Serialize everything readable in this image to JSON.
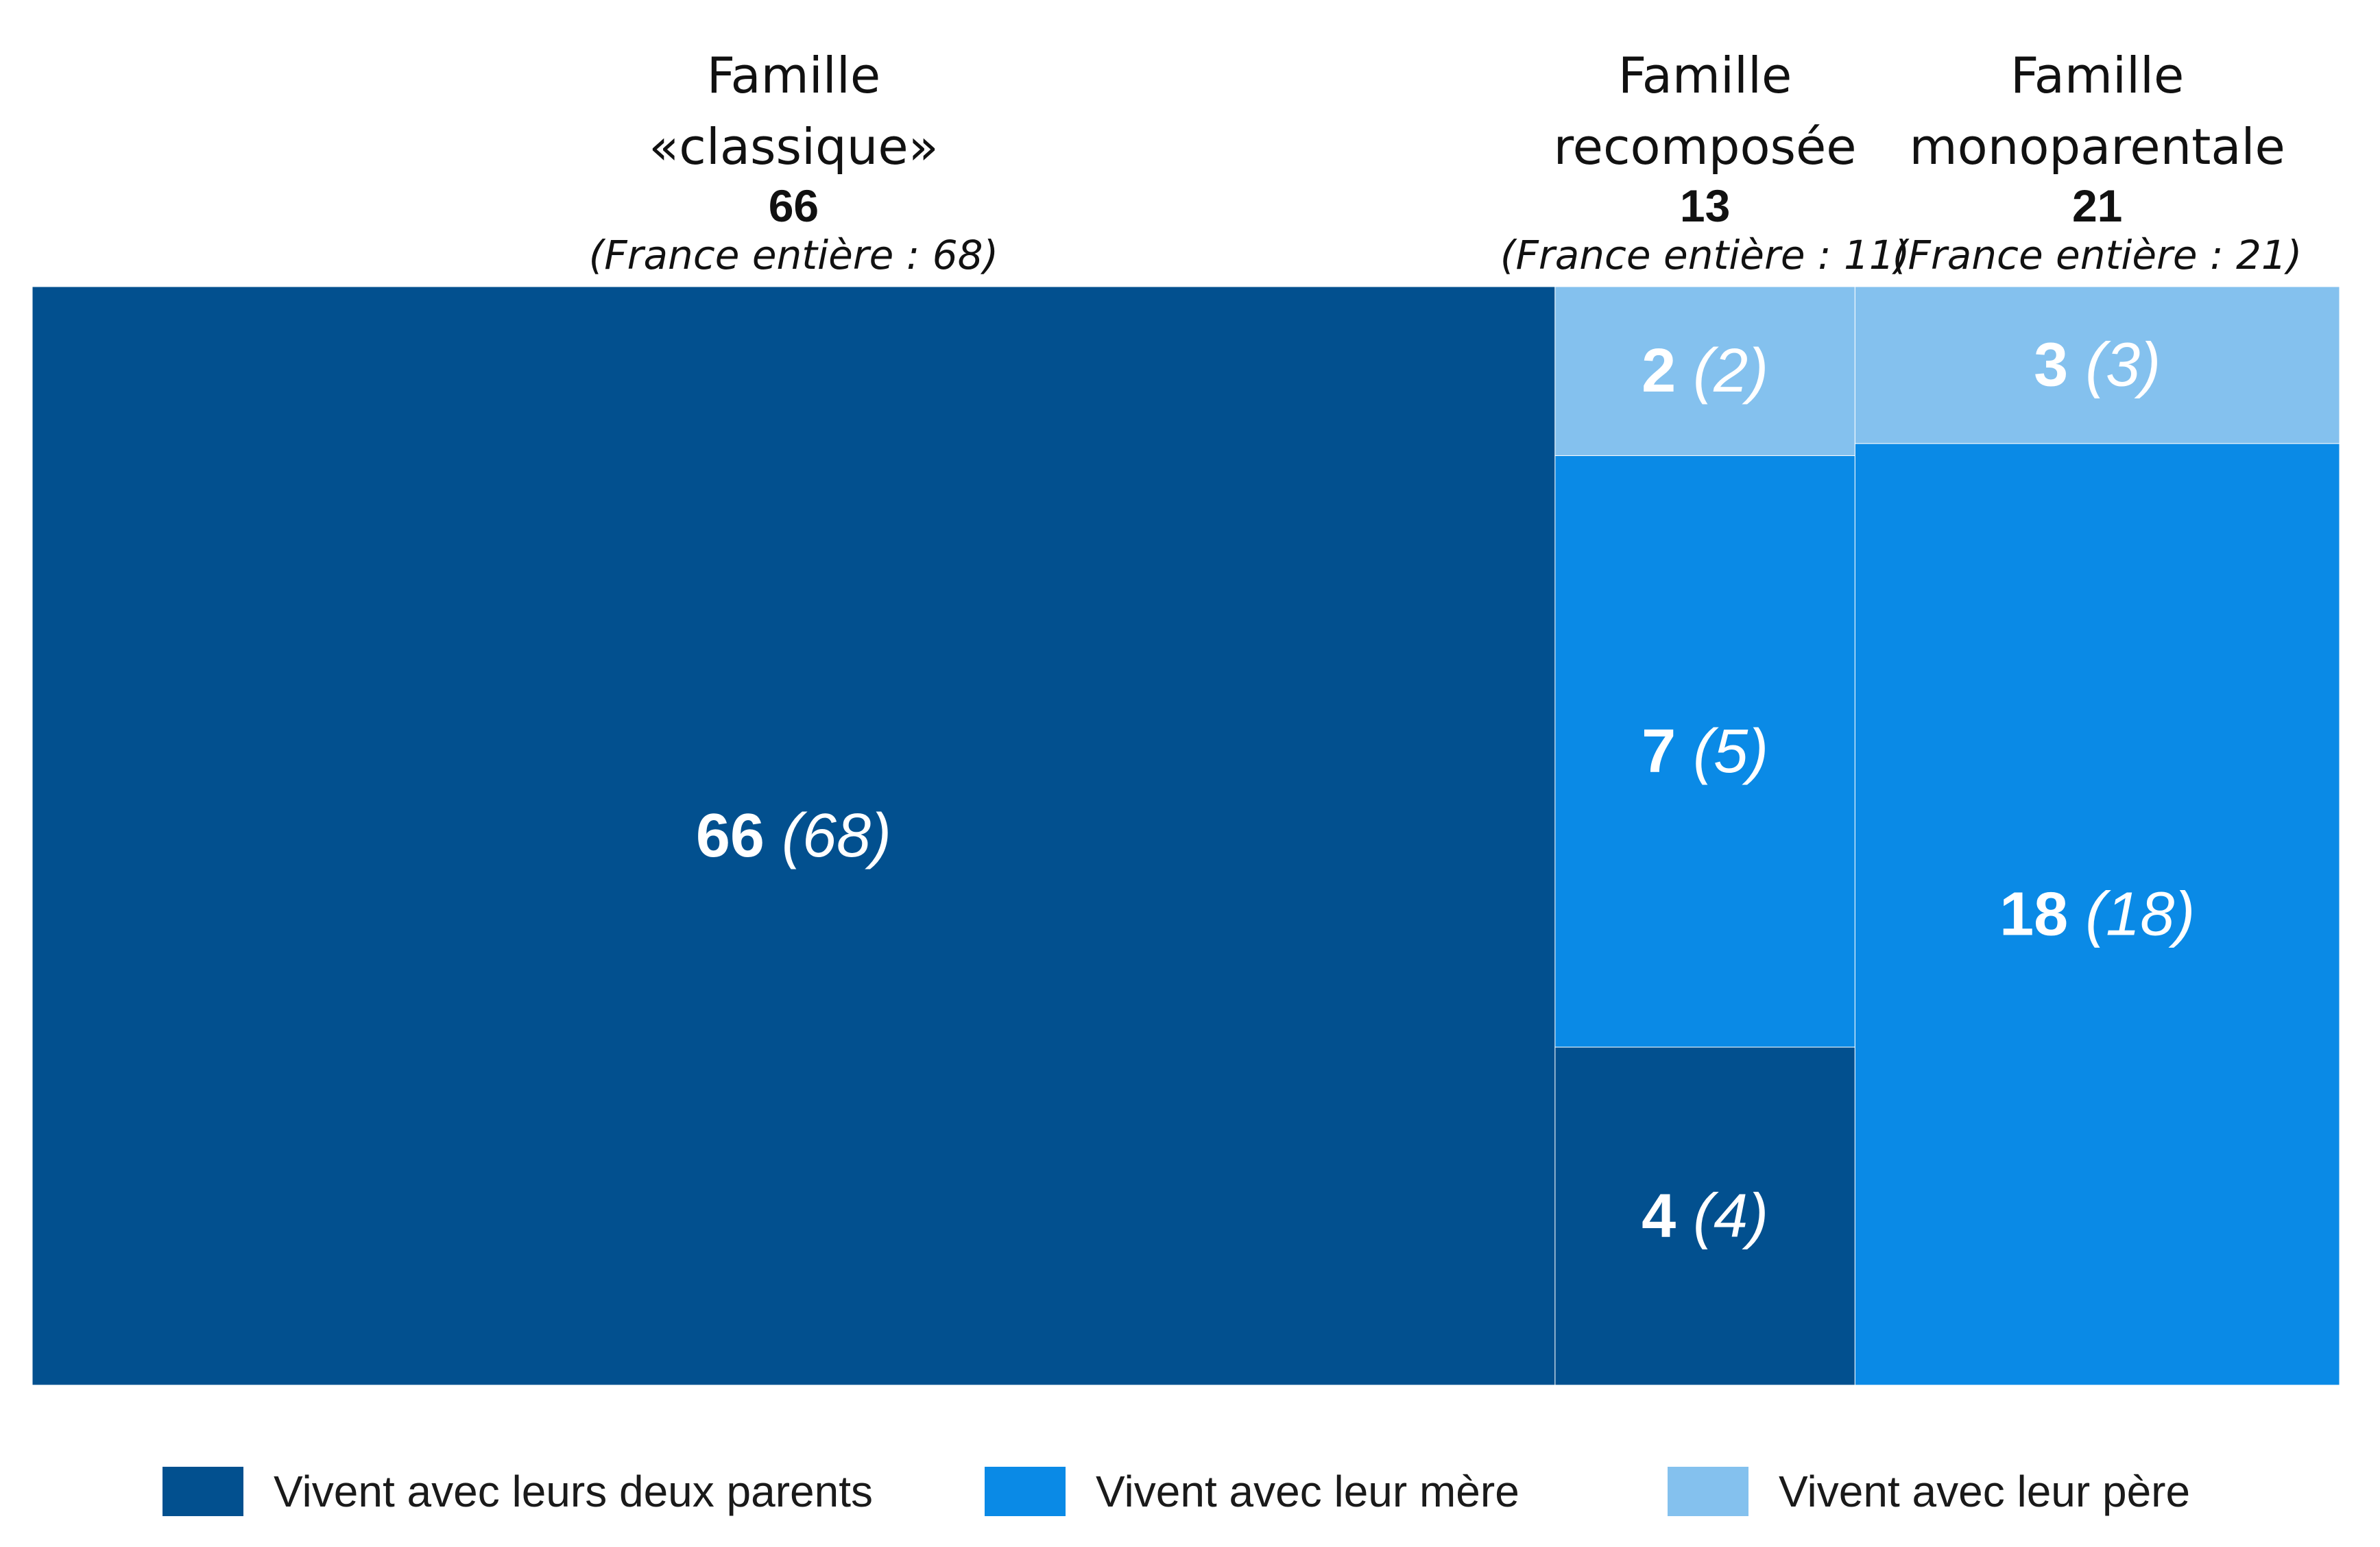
{
  "chart_data": {
    "type": "mosaic",
    "groups": [
      {
        "name": "Famille",
        "name2": "«classique»",
        "total": "66",
        "france": "(France entière : 68)",
        "segments": [
          {
            "series": "deux",
            "value": 66,
            "france": 68,
            "label_value": "66",
            "label_france": "(68)"
          }
        ]
      },
      {
        "name": "Famille",
        "name2": "recomposée",
        "total": "13",
        "france": "(France entière : 11)",
        "segments": [
          {
            "series": "pere",
            "value": 2,
            "france": 2,
            "label_value": "2",
            "label_france": "(2)"
          },
          {
            "series": "mere",
            "value": 7,
            "france": 5,
            "label_value": "7",
            "label_france": "(5)"
          },
          {
            "series": "deux",
            "value": 4,
            "france": 4,
            "label_value": "4",
            "label_france": "(4)"
          }
        ]
      },
      {
        "name": "Famille",
        "name2": "monoparentale",
        "total": "21",
        "france": "(France entière : 21)",
        "segments": [
          {
            "series": "pere",
            "value": 3,
            "france": 3,
            "label_value": "3",
            "label_france": "(3)"
          },
          {
            "series": "mere",
            "value": 18,
            "france": 18,
            "label_value": "18",
            "label_france": "(18)"
          }
        ]
      }
    ],
    "legend": [
      {
        "key": "deux",
        "label": "Vivent avec leurs deux parents",
        "color": "#02508f"
      },
      {
        "key": "mere",
        "label": "Vivent avec leur mère",
        "color": "#0a8ae6"
      },
      {
        "key": "pere",
        "label": "Vivent avec leur père",
        "color": "#84c1ee"
      }
    ],
    "legend_position": "bottom"
  }
}
